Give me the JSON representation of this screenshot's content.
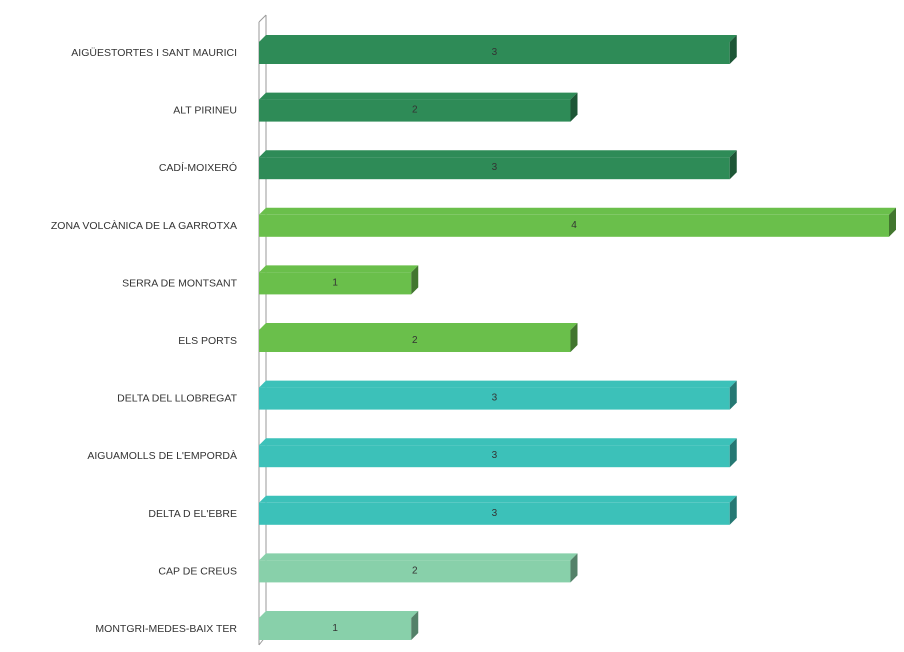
{
  "chart_data": {
    "type": "bar",
    "orientation": "horizontal",
    "style": "3d",
    "categories": [
      "AIGÜESTORTES I SANT MAURICI",
      "ALT PIRINEU",
      "CADÍ-MOIXERÓ",
      "ZONA VOLCÀNICA DE LA GARROTXA",
      "SERRA DE MONTSANT",
      "ELS PORTS",
      "DELTA DEL LLOBREGAT",
      "AIGUAMOLLS DE L'EMPORDÀ",
      "DELTA D EL'EBRE",
      "CAP DE CREUS",
      "MONTGRI-MEDES-BAIX TER"
    ],
    "values": [
      3,
      2,
      3,
      4,
      1,
      2,
      3,
      3,
      3,
      2,
      1
    ],
    "colors": [
      "#2e8b57",
      "#2e8b57",
      "#2e8b57",
      "#6abf4b",
      "#6abf4b",
      "#6abf4b",
      "#3cc1b9",
      "#3cc1b9",
      "#3cc1b9",
      "#88d0aa",
      "#88d0aa"
    ],
    "xlim": [
      0,
      4
    ],
    "data_labels": true,
    "grid": false,
    "legend": "none"
  }
}
